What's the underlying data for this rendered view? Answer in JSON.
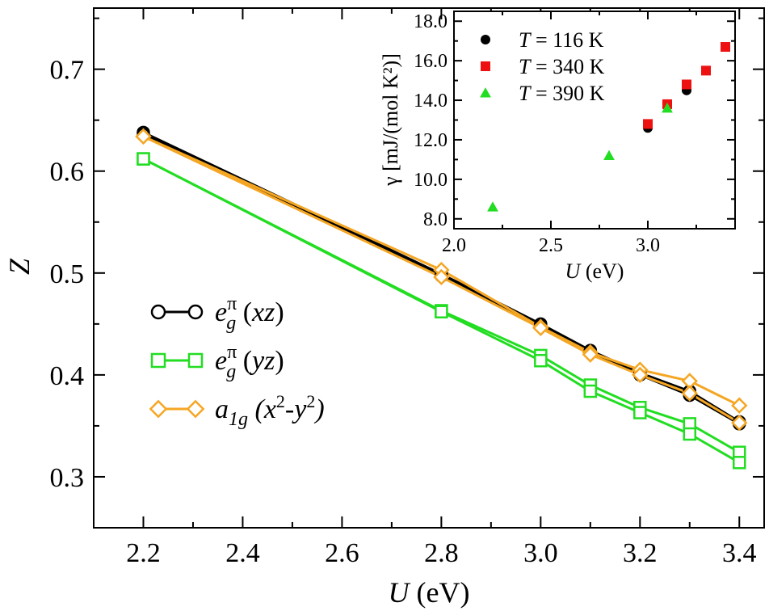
{
  "chart_data": [
    {
      "type": "line",
      "xlabel": "U (eV)",
      "ylabel": "Z",
      "xlim": [
        2.1,
        3.45
      ],
      "ylim": [
        0.25,
        0.76
      ],
      "xticks": [
        "2.2",
        "2.4",
        "2.6",
        "2.8",
        "3.0",
        "3.2",
        "3.4"
      ],
      "yticks": [
        "0.3",
        "0.4",
        "0.5",
        "0.6",
        "0.7"
      ],
      "xtick_values": [
        2.2,
        2.4,
        2.6,
        2.8,
        3.0,
        3.2,
        3.4
      ],
      "ytick_values": [
        0.3,
        0.4,
        0.5,
        0.6,
        0.7
      ],
      "legend_position": "center-left",
      "series": [
        {
          "name": "e_g^π (xz)",
          "label_base": "e",
          "label_sub": "g",
          "label_sup": "π",
          "label_rest": " (xz)",
          "color": "#000000",
          "marker": "circle",
          "x": [
            2.2,
            2.8,
            3.0,
            3.1,
            3.2,
            3.3,
            3.4
          ],
          "values": [
            0.638,
            0.499,
            0.45,
            0.424,
            0.402,
            0.384,
            0.354
          ]
        },
        {
          "name": "e_g^π (xz) branch 2",
          "legend": false,
          "color": "#000000",
          "marker": "circle",
          "x": [
            2.2,
            2.8,
            3.0,
            3.1,
            3.2,
            3.3,
            3.4
          ],
          "values": [
            0.636,
            0.497,
            0.448,
            0.422,
            0.4,
            0.38,
            0.352
          ]
        },
        {
          "name": "e_g^π (yz)",
          "label_base": "e",
          "label_sub": "g",
          "label_sup": "π",
          "label_rest": " (yz)",
          "color": "#22dd22",
          "marker": "square",
          "x": [
            2.2,
            2.8,
            3.0,
            3.1,
            3.2,
            3.3,
            3.4
          ],
          "values": [
            0.612,
            0.463,
            0.419,
            0.39,
            0.368,
            0.352,
            0.324
          ]
        },
        {
          "name": "e_g^π (yz) branch 2",
          "legend": false,
          "color": "#22dd22",
          "marker": "square",
          "x": [
            2.2,
            2.8,
            3.0,
            3.1,
            3.2,
            3.3,
            3.4
          ],
          "values": [
            0.612,
            0.462,
            0.414,
            0.384,
            0.363,
            0.342,
            0.314
          ]
        },
        {
          "name": "a_1g (x²-y²)",
          "label_base": "a",
          "label_sub": "1g",
          "label_rest": " (x",
          "label_rest_sup": "2",
          "label_rest2": "-y",
          "label_rest2_sup": "2",
          "label_rest3": ")",
          "color": "#f5a623",
          "marker": "diamond",
          "x": [
            2.2,
            2.8,
            3.0,
            3.1,
            3.2,
            3.3,
            3.4
          ],
          "values": [
            0.634,
            0.503,
            0.447,
            0.422,
            0.405,
            0.394,
            0.37
          ]
        },
        {
          "name": "a_1g (x²-y²) branch 2",
          "legend": false,
          "color": "#f5a623",
          "marker": "diamond",
          "x": [
            2.2,
            2.8,
            3.0,
            3.1,
            3.2,
            3.3,
            3.4
          ],
          "values": [
            0.634,
            0.496,
            0.446,
            0.42,
            0.4,
            0.382,
            0.353
          ]
        }
      ]
    },
    {
      "type": "scatter",
      "xlabel": "U (eV)",
      "ylabel": "γ [mJ/(mol K²)]",
      "xlim": [
        2.0,
        3.45
      ],
      "ylim": [
        7.5,
        18.5
      ],
      "xticks": [
        "2.0",
        "2.5",
        "3.0"
      ],
      "yticks": [
        "8.0",
        "10.0",
        "12.0",
        "14.0",
        "16.0",
        "18.0"
      ],
      "xtick_values": [
        2.0,
        2.5,
        3.0
      ],
      "ytick_values": [
        8.0,
        10.0,
        12.0,
        14.0,
        16.0,
        18.0
      ],
      "legend_position": "top-left",
      "series": [
        {
          "name": "T = 116 K",
          "label_var": "T",
          "label_rest": " = 116 K",
          "color": "#000000",
          "marker": "circle",
          "x": [
            3.0,
            3.2
          ],
          "values": [
            12.6,
            14.5
          ]
        },
        {
          "name": "T = 340 K",
          "label_var": "T",
          "label_rest": " = 340 K",
          "color": "#ee1111",
          "marker": "square",
          "x": [
            3.0,
            3.1,
            3.2,
            3.3,
            3.4
          ],
          "values": [
            12.8,
            13.8,
            14.8,
            15.5,
            16.7
          ]
        },
        {
          "name": "T = 390 K",
          "label_var": "T",
          "label_rest": " = 390 K",
          "color": "#22dd22",
          "marker": "triangle",
          "x": [
            2.2,
            2.8,
            3.1
          ],
          "values": [
            8.6,
            11.2,
            13.6
          ]
        }
      ]
    }
  ]
}
